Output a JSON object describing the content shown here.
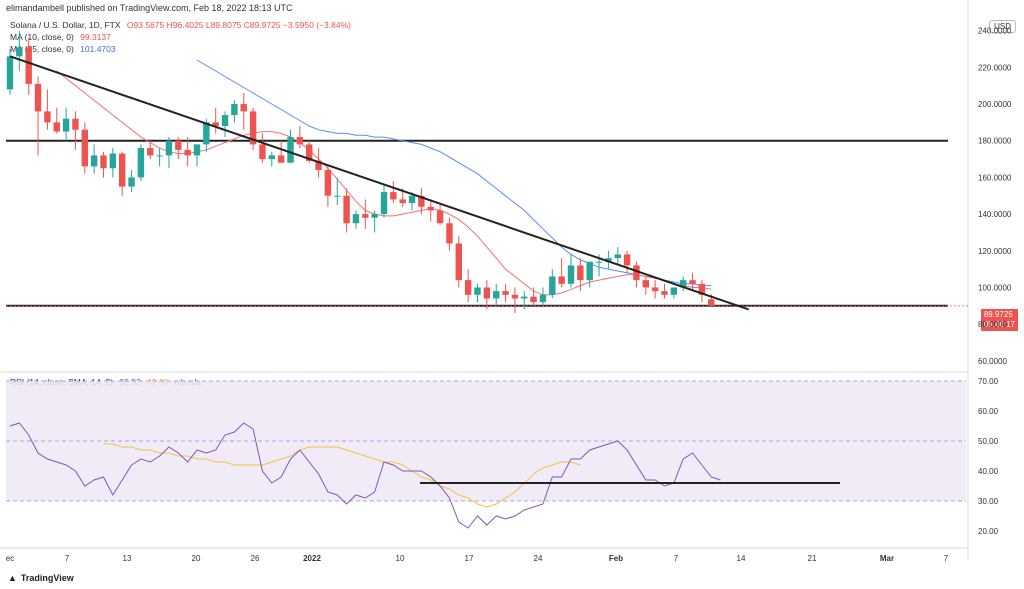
{
  "header": {
    "published": "elimandambell published on TradingView.com, Feb 18, 2022 18:13 UTC"
  },
  "legend": {
    "symbol": "Solana / U.S. Dollar, 1D, FTX",
    "ohlc": "O93.5675  H96.4025  L89.8075  C89.9725  −3.5950 (−3.84%)",
    "ma10_label": "MA (10, close, 0)",
    "ma10_value": "99.3137",
    "ma25_label": "MA (25, close, 0)",
    "ma25_value": "101.4703",
    "rsi_label": "RSI (14, close, SMA, 14, 2)",
    "rsi_value": "36.92",
    "rsi_sma_value": "42.66",
    "rsi_na": "n/a  n/a"
  },
  "currency_button": "USD",
  "price_tag": {
    "price": "89.9725",
    "countdown": "05:46:17"
  },
  "footer": {
    "logo_text": "TradingView"
  },
  "colors": {
    "up": "#26a69a",
    "down": "#ef5350",
    "ma10": "#f2736f",
    "ma25": "#5b8def",
    "rsi": "#7e57c2",
    "rsi_sma": "#f5c243"
  },
  "chart_data": [
    {
      "type": "candlestick",
      "title": "Solana / U.S. Dollar, 1D, FTX",
      "ylabel": "USD",
      "y_ticks": [
        "240.0000",
        "220.0000",
        "200.0000",
        "180.0000",
        "160.0000",
        "140.0000",
        "120.0000",
        "100.0000",
        "80.0000",
        "60.0000"
      ],
      "x_ticks": [
        "ec",
        "7",
        "13",
        "20",
        "26",
        "2022",
        "10",
        "17",
        "24",
        "Feb",
        "7",
        "14",
        "21",
        "Mar",
        "7"
      ],
      "ylim": [
        55,
        248
      ],
      "ohlc": [
        [
          208,
          230,
          205,
          226
        ],
        [
          226,
          240,
          218,
          231
        ],
        [
          231,
          236,
          205,
          211
        ],
        [
          211,
          215,
          172,
          196
        ],
        [
          196,
          208,
          186,
          190
        ],
        [
          190,
          198,
          184,
          185
        ],
        [
          185,
          198,
          180,
          192
        ],
        [
          192,
          196,
          175,
          186
        ],
        [
          186,
          190,
          162,
          166
        ],
        [
          166,
          178,
          162,
          172
        ],
        [
          172,
          174,
          160,
          165
        ],
        [
          165,
          176,
          160,
          173
        ],
        [
          173,
          174,
          150,
          155
        ],
        [
          155,
          164,
          152,
          160
        ],
        [
          160,
          178,
          158,
          176
        ],
        [
          176,
          180,
          170,
          172
        ],
        [
          172,
          176,
          166,
          172
        ],
        [
          172,
          182,
          165,
          180
        ],
        [
          180,
          182,
          170,
          175
        ],
        [
          175,
          182,
          166,
          172
        ],
        [
          172,
          178,
          166,
          178
        ],
        [
          178,
          192,
          174,
          190
        ],
        [
          190,
          198,
          184,
          188
        ],
        [
          188,
          196,
          182,
          194
        ],
        [
          194,
          202,
          190,
          200
        ],
        [
          200,
          206,
          186,
          196
        ],
        [
          196,
          198,
          175,
          178
        ],
        [
          178,
          184,
          168,
          170
        ],
        [
          170,
          174,
          166,
          172
        ],
        [
          172,
          180,
          168,
          168
        ],
        [
          168,
          186,
          168,
          182
        ],
        [
          182,
          188,
          176,
          178
        ],
        [
          178,
          180,
          168,
          169
        ],
        [
          169,
          176,
          160,
          164
        ],
        [
          164,
          166,
          144,
          150
        ],
        [
          150,
          160,
          145,
          150
        ],
        [
          150,
          154,
          130,
          135
        ],
        [
          135,
          142,
          132,
          140
        ],
        [
          140,
          148,
          132,
          138
        ],
        [
          138,
          142,
          130,
          140
        ],
        [
          140,
          156,
          138,
          152
        ],
        [
          152,
          158,
          146,
          148
        ],
        [
          148,
          154,
          144,
          146
        ],
        [
          146,
          152,
          142,
          150
        ],
        [
          150,
          154,
          140,
          144
        ],
        [
          144,
          148,
          136,
          142
        ],
        [
          142,
          146,
          134,
          135
        ],
        [
          135,
          138,
          120,
          124
        ],
        [
          124,
          128,
          100,
          104
        ],
        [
          104,
          110,
          92,
          96
        ],
        [
          96,
          102,
          92,
          100
        ],
        [
          100,
          104,
          88,
          94
        ],
        [
          94,
          102,
          90,
          98
        ],
        [
          98,
          102,
          92,
          96
        ],
        [
          96,
          100,
          86,
          94
        ],
        [
          94,
          98,
          88,
          95
        ],
        [
          95,
          100,
          90,
          92
        ],
        [
          92,
          100,
          90,
          96
        ],
        [
          96,
          110,
          94,
          106
        ],
        [
          106,
          116,
          100,
          102
        ],
        [
          102,
          118,
          100,
          112
        ],
        [
          112,
          116,
          98,
          104
        ],
        [
          104,
          114,
          100,
          114
        ],
        [
          114,
          118,
          106,
          114
        ],
        [
          114,
          120,
          110,
          116
        ],
        [
          116,
          122,
          112,
          118
        ],
        [
          118,
          120,
          108,
          112
        ],
        [
          112,
          114,
          100,
          104
        ],
        [
          104,
          106,
          96,
          100
        ],
        [
          100,
          104,
          94,
          98
        ],
        [
          98,
          102,
          94,
          96
        ],
        [
          96,
          100,
          94,
          100
        ],
        [
          100,
          106,
          98,
          104
        ],
        [
          104,
          108,
          98,
          102
        ],
        [
          102,
          104,
          92,
          96
        ],
        [
          93.5675,
          96.4025,
          89.8075,
          89.9725
        ]
      ],
      "ma10": [
        218,
        214,
        210,
        206,
        202,
        198,
        194,
        190,
        186,
        182,
        179,
        176,
        174,
        173,
        173,
        174,
        175,
        177,
        179,
        181,
        183,
        184,
        185,
        185,
        184,
        182,
        179,
        175,
        170,
        165,
        159,
        153,
        147,
        142,
        140,
        139,
        139,
        140,
        141,
        142,
        143,
        142,
        140,
        137,
        133,
        128,
        122,
        116,
        110,
        106,
        102,
        98,
        96,
        96,
        97,
        99,
        101,
        103,
        104,
        105,
        106,
        107,
        107,
        106,
        105,
        104,
        102,
        101,
        100,
        100,
        99
      ],
      "ma25": [
        224,
        221,
        218,
        215,
        212,
        209,
        206,
        203,
        200,
        197,
        194,
        191,
        188,
        186,
        185,
        184,
        184,
        183,
        183,
        182,
        182,
        181,
        180,
        179,
        178,
        176,
        174,
        171,
        168,
        165,
        162,
        158,
        154,
        150,
        146,
        142,
        137,
        132,
        127,
        122,
        118,
        115,
        113,
        111,
        110,
        109,
        108,
        107,
        106,
        105,
        104,
        103,
        102,
        102,
        101,
        101
      ],
      "horizontal_lines": [
        180,
        90
      ],
      "trendline": {
        "from": [
          0,
          226
        ],
        "to": [
          79,
          88
        ]
      }
    },
    {
      "type": "line",
      "title": "RSI (14, close, SMA, 14, 2)",
      "y_ticks": [
        "70.00",
        "60.00",
        "50.00",
        "40.00",
        "30.00",
        "20.00"
      ],
      "ylim": [
        15,
        73
      ],
      "band": [
        30,
        70
      ],
      "series": [
        {
          "name": "RSI",
          "values": [
            55,
            56,
            52,
            46,
            44,
            43,
            42,
            40,
            35,
            37,
            38,
            32,
            37,
            42,
            44,
            43,
            45,
            48,
            46,
            43,
            47,
            46,
            47,
            52,
            53,
            56,
            54,
            40,
            36,
            38,
            44,
            47,
            43,
            39,
            33,
            32,
            29,
            32,
            31,
            33,
            43,
            42,
            40,
            40,
            40,
            38,
            35,
            31,
            23,
            21,
            25,
            22,
            25,
            24,
            25,
            27,
            28,
            29,
            38,
            38,
            44,
            44,
            47,
            48,
            49,
            50,
            47,
            42,
            37,
            37,
            35,
            36,
            44,
            46,
            42,
            38,
            37
          ]
        },
        {
          "name": "RSI SMA",
          "values": [
            49,
            49,
            48,
            48,
            47,
            47,
            46,
            46,
            45,
            45,
            44,
            44,
            43,
            43,
            42,
            42,
            42,
            42,
            43,
            44,
            45,
            47,
            48,
            48,
            48,
            48,
            47,
            46,
            45,
            44,
            43,
            43,
            42,
            40,
            38,
            37,
            35,
            34,
            32,
            31,
            29,
            28,
            29,
            31,
            33,
            36,
            39,
            41,
            42,
            43,
            43,
            42
          ]
        }
      ],
      "support_line": 36
    }
  ]
}
